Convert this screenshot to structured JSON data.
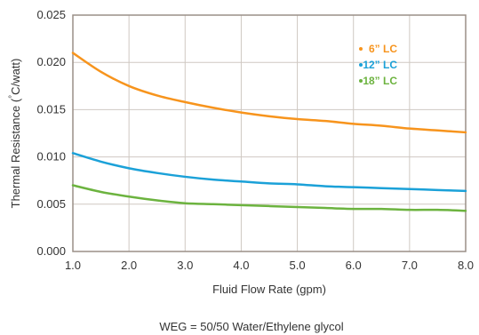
{
  "chart_data": {
    "type": "line",
    "xlabel": "Fluid Flow Rate (gpm)",
    "ylabel": "Thermal Resistance (°C/watt)",
    "caption": "WEG = 50/50 Water/Ethylene glycol",
    "xlim": [
      1.0,
      8.0
    ],
    "ylim": [
      0.0,
      0.025
    ],
    "x_ticks": [
      "1.0",
      "2.0",
      "3.0",
      "4.0",
      "5.0",
      "6.0",
      "7.0",
      "8.0"
    ],
    "y_ticks": [
      "0.000",
      "0.005",
      "0.010",
      "0.015",
      "0.020",
      "0.025"
    ],
    "grid": true,
    "legend_position": "top-right",
    "series": [
      {
        "name": "6” LC",
        "color": "#F7941D",
        "x": [
          1.0,
          1.5,
          2.0,
          2.5,
          3.0,
          3.5,
          4.0,
          4.5,
          5.0,
          5.5,
          6.0,
          6.5,
          7.0,
          7.5,
          8.0
        ],
        "y": [
          0.021,
          0.019,
          0.0175,
          0.0165,
          0.0158,
          0.0152,
          0.0147,
          0.0143,
          0.014,
          0.0138,
          0.0135,
          0.0133,
          0.013,
          0.0128,
          0.0126
        ]
      },
      {
        "name": "12” LC",
        "color": "#1BA1D8",
        "x": [
          1.0,
          1.5,
          2.0,
          2.5,
          3.0,
          3.5,
          4.0,
          4.5,
          5.0,
          5.5,
          6.0,
          6.5,
          7.0,
          7.5,
          8.0
        ],
        "y": [
          0.0104,
          0.0095,
          0.0088,
          0.0083,
          0.0079,
          0.0076,
          0.0074,
          0.0072,
          0.0071,
          0.0069,
          0.0068,
          0.0067,
          0.0066,
          0.0065,
          0.0064
        ]
      },
      {
        "name": "18” LC",
        "color": "#6CB33F",
        "x": [
          1.0,
          1.5,
          2.0,
          2.5,
          3.0,
          3.5,
          4.0,
          4.5,
          5.0,
          5.5,
          6.0,
          6.5,
          7.0,
          7.5,
          8.0
        ],
        "y": [
          0.007,
          0.0063,
          0.0058,
          0.0054,
          0.0051,
          0.005,
          0.0049,
          0.0048,
          0.0047,
          0.0046,
          0.0045,
          0.0045,
          0.0044,
          0.0044,
          0.0043
        ]
      }
    ]
  }
}
